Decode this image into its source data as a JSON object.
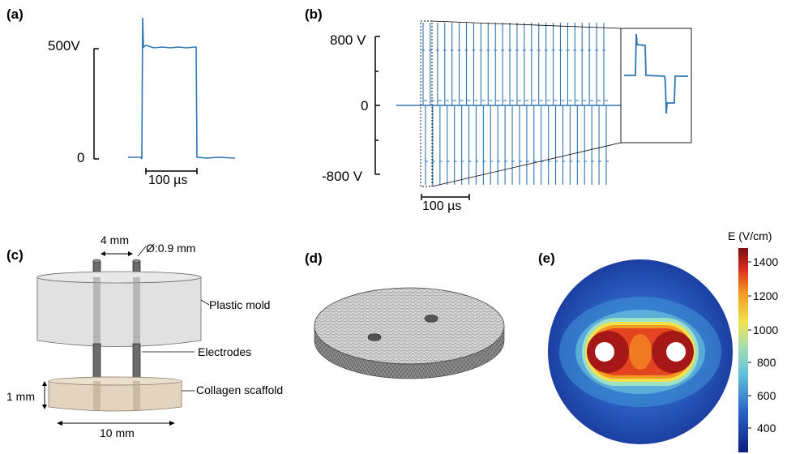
{
  "panels": {
    "a": {
      "label": "(a)",
      "y_top_label": "500V",
      "y_bottom_label": "0",
      "scalebar_label": "100 µs"
    },
    "b": {
      "label": "(b)",
      "y_top_label": "800 V",
      "y_mid_label": "0",
      "y_bottom_label": "-800 V",
      "scalebar_label": "100 µs"
    },
    "c": {
      "label": "(c)",
      "gap_label": "4 mm",
      "diameter_label": "Ø:0.9 mm",
      "mold_label": "Plastic mold",
      "electrodes_label": "Electrodes",
      "scaffold_label": "Collagen scaffold",
      "thickness_label": "1 mm",
      "width_label": "10 mm"
    },
    "d": {
      "label": "(d)"
    },
    "e": {
      "label": "(e)",
      "colorbar_title": "E (V/cm)",
      "colorbar_ticks": [
        "1400",
        "1200",
        "1000",
        "800",
        "600",
        "400"
      ]
    }
  },
  "colors": {
    "trace": "#2e75b6",
    "mold": "#dcdcdc",
    "scaffold": "#e3d4bf",
    "electrode": "#6b6b6b"
  }
}
